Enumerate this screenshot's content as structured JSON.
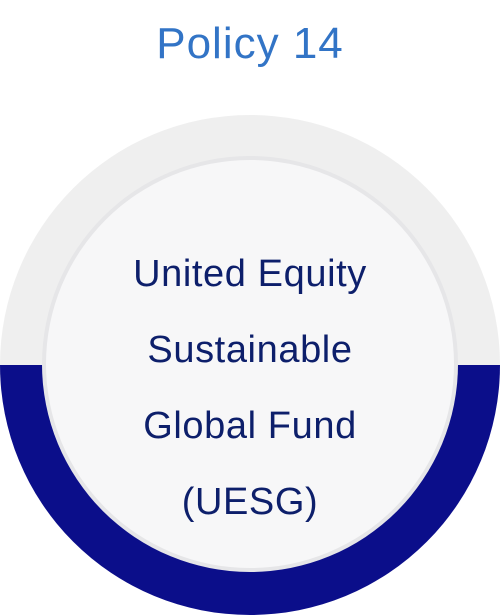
{
  "title": "Policy 14",
  "fund": {
    "lines": [
      "United Equity",
      "Sustainable",
      "Global Fund",
      "(UESG)"
    ]
  },
  "colors": {
    "title": "#3274c6",
    "ring_top": "#efefef",
    "ring_bottom": "#0b0e8a",
    "text": "#0d1f6b"
  }
}
